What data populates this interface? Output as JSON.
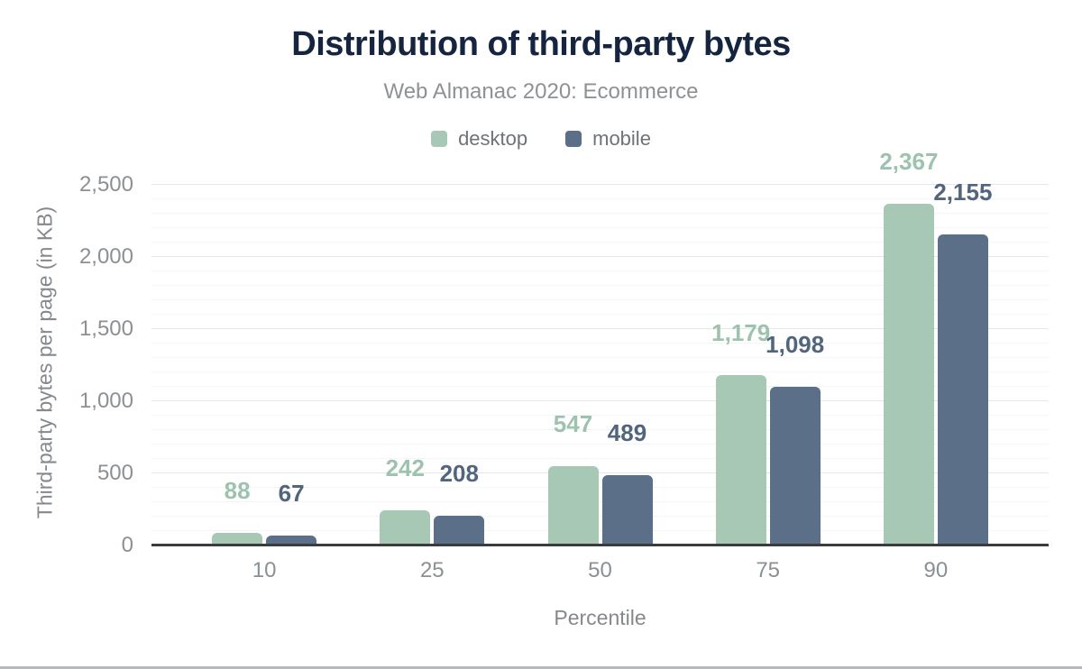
{
  "title": "Distribution of third-party bytes",
  "subtitle": "Web Almanac 2020: Ecommerce",
  "legend": [
    {
      "label": "desktop",
      "color": "#a7c8b5"
    },
    {
      "label": "mobile",
      "color": "#5c6f88"
    }
  ],
  "chart_data": {
    "type": "bar",
    "title": "Distribution of third-party bytes",
    "subtitle": "Web Almanac 2020: Ecommerce",
    "categories": [
      "10",
      "25",
      "50",
      "75",
      "90"
    ],
    "series": [
      {
        "name": "desktop",
        "color": "#a7c8b5",
        "label_color": "#9dc3ae",
        "values": [
          88,
          242,
          547,
          1179,
          2367
        ],
        "labels": [
          "88",
          "242",
          "547",
          "1,179",
          "2,367"
        ]
      },
      {
        "name": "mobile",
        "color": "#5c6f88",
        "label_color": "#52657e",
        "values": [
          67,
          208,
          489,
          1098,
          2155
        ],
        "labels": [
          "67",
          "208",
          "489",
          "1,098",
          "2,155"
        ]
      }
    ],
    "xlabel": "Percentile",
    "ylabel": "Third-party bytes per page (in KB)",
    "ylim": [
      0,
      2500
    ],
    "ytick_step": 500,
    "minor_gridline_step": 100,
    "yticks": [
      0,
      500,
      1000,
      1500,
      2000,
      2500
    ],
    "ytick_labels": [
      "0",
      "500",
      "1,000",
      "1,500",
      "2,000",
      "2,500"
    ],
    "grid": true,
    "legend_position": "top",
    "value_labels_shown": true
  }
}
